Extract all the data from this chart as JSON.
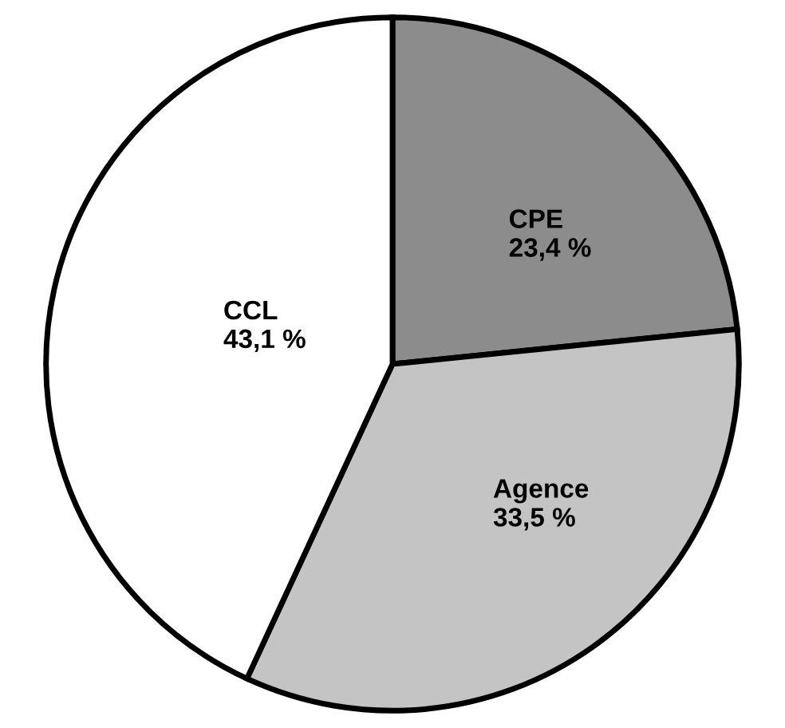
{
  "chart_data": {
    "type": "pie",
    "categories": [
      "CPE",
      "Agence",
      "CCL"
    ],
    "values": [
      23.4,
      33.5,
      43.1
    ],
    "colors": [
      "#8c8c8c",
      "#c4c4c4",
      "#ffffff"
    ],
    "value_labels": [
      "23,4 %",
      "33,5 %",
      "43,1 %"
    ]
  }
}
